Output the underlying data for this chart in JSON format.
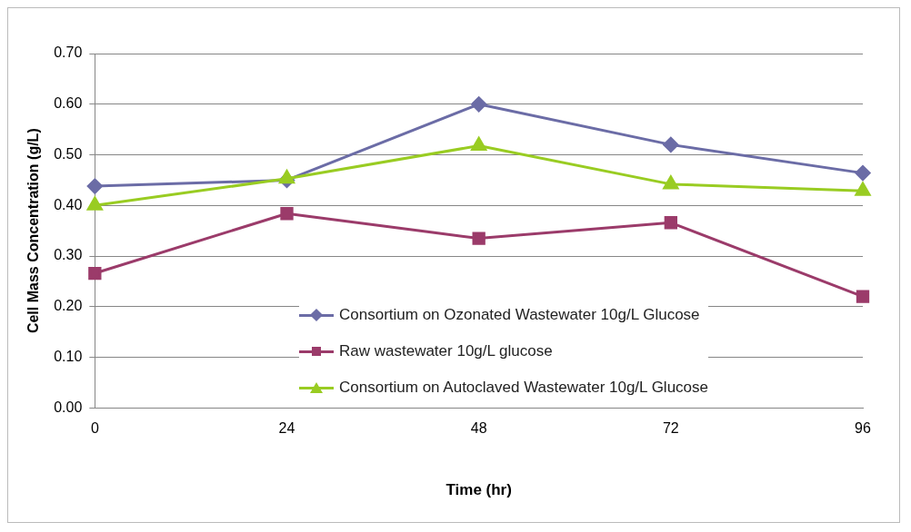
{
  "chart_data": {
    "type": "line",
    "xlabel": "Time (hr)",
    "ylabel": "Cell Mass Concentration (g/L)",
    "categories": [
      "0",
      "24",
      "48",
      "72",
      "96"
    ],
    "ylim": [
      0,
      0.7
    ],
    "yticks": [
      {
        "value": 0,
        "label": "0.00"
      },
      {
        "value": 0.1,
        "label": "0.10"
      },
      {
        "value": 0.2,
        "label": "0.20"
      },
      {
        "value": 0.3,
        "label": "0.30"
      },
      {
        "value": 0.4,
        "label": "0.40"
      },
      {
        "value": 0.5,
        "label": "0.50"
      },
      {
        "value": 0.6,
        "label": "0.60"
      },
      {
        "value": 0.7,
        "label": "0.70"
      }
    ],
    "grid": "y",
    "legend": "bottom",
    "line_style": "solid",
    "series": [
      {
        "name": "Consortium on Ozonated Wastewater 10g/L Glucose",
        "color": "#6b6ca6",
        "marker": "diamond",
        "values": [
          0.438,
          0.45,
          0.6,
          0.52,
          0.464
        ]
      },
      {
        "name": "Raw wastewater 10g/L glucose",
        "color": "#9b3b6a",
        "marker": "square",
        "values": [
          0.266,
          0.384,
          0.335,
          0.366,
          0.22
        ]
      },
      {
        "name": "Consortium on Autoclaved Wastewater 10g/L Glucose",
        "color": "#99cc22",
        "marker": "triangle",
        "values": [
          0.4,
          0.453,
          0.518,
          0.442,
          0.429
        ]
      }
    ]
  }
}
